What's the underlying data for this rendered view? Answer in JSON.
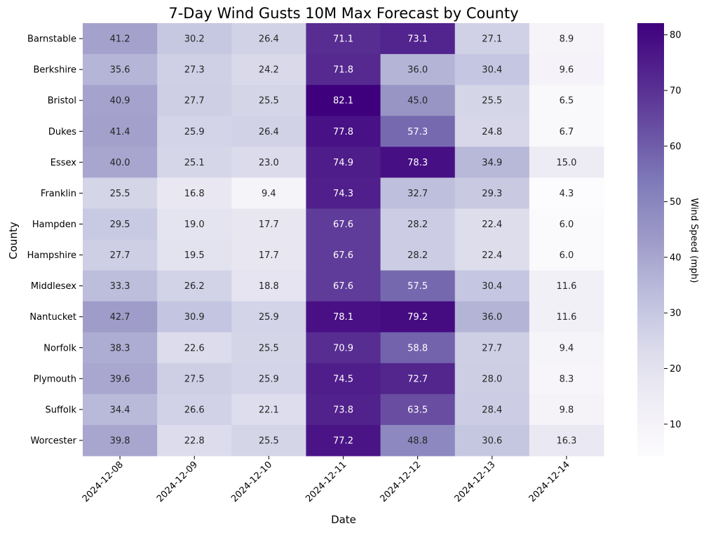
{
  "chart_data": {
    "type": "heatmap",
    "title": "7-Day Wind Gusts 10M Max Forecast by County",
    "xlabel": "Date",
    "ylabel": "County",
    "colorbar_label": "Wind Speed (mph)",
    "colormap": "Purples",
    "value_range": [
      4.3,
      82.1
    ],
    "colorbar_ticks": [
      10,
      20,
      30,
      40,
      50,
      60,
      70,
      80
    ],
    "x": [
      "2024-12-08",
      "2024-12-09",
      "2024-12-10",
      "2024-12-11",
      "2024-12-12",
      "2024-12-13",
      "2024-12-14"
    ],
    "y": [
      "Barnstable",
      "Berkshire",
      "Bristol",
      "Dukes",
      "Essex",
      "Franklin",
      "Hampden",
      "Hampshire",
      "Middlesex",
      "Nantucket",
      "Norfolk",
      "Plymouth",
      "Suffolk",
      "Worcester"
    ],
    "values": [
      [
        41.2,
        30.2,
        26.4,
        71.1,
        73.1,
        27.1,
        8.9
      ],
      [
        35.6,
        27.3,
        24.2,
        71.8,
        36.0,
        30.4,
        9.6
      ],
      [
        40.9,
        27.7,
        25.5,
        82.1,
        45.0,
        25.5,
        6.5
      ],
      [
        41.4,
        25.9,
        26.4,
        77.8,
        57.3,
        24.8,
        6.7
      ],
      [
        40.0,
        25.1,
        23.0,
        74.9,
        78.3,
        34.9,
        15.0
      ],
      [
        25.5,
        16.8,
        9.4,
        74.3,
        32.7,
        29.3,
        4.3
      ],
      [
        29.5,
        19.0,
        17.7,
        67.6,
        28.2,
        22.4,
        6.0
      ],
      [
        27.7,
        19.5,
        17.7,
        67.6,
        28.2,
        22.4,
        6.0
      ],
      [
        33.3,
        26.2,
        18.8,
        67.6,
        57.5,
        30.4,
        11.6
      ],
      [
        42.7,
        30.9,
        25.9,
        78.1,
        79.2,
        36.0,
        11.6
      ],
      [
        38.3,
        22.6,
        25.5,
        70.9,
        58.8,
        27.7,
        9.4
      ],
      [
        39.6,
        27.5,
        25.9,
        74.5,
        72.7,
        28.0,
        8.3
      ],
      [
        34.4,
        26.6,
        22.1,
        73.8,
        63.5,
        28.4,
        9.8
      ],
      [
        39.8,
        22.8,
        25.5,
        77.2,
        48.8,
        30.6,
        16.3
      ]
    ]
  }
}
